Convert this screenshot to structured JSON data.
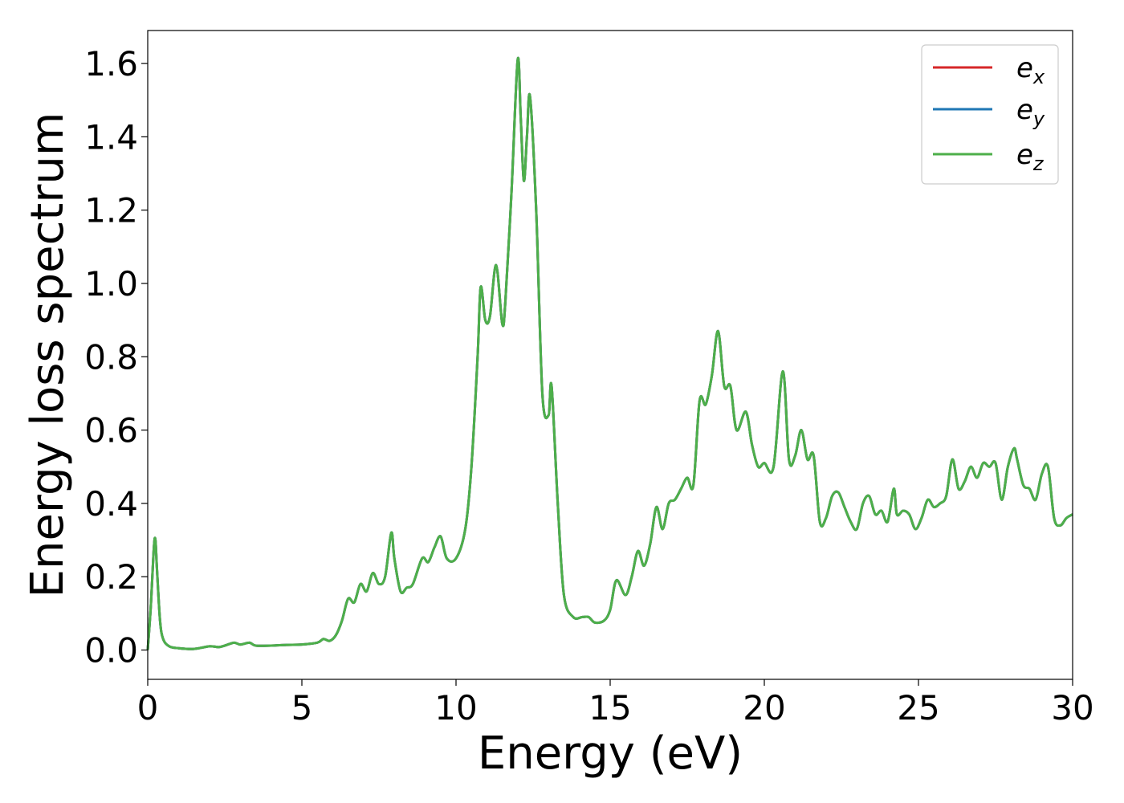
{
  "chart_data": {
    "type": "line",
    "title": "",
    "xlabel": "Energy (eV)",
    "ylabel": "Energy loss spectrum",
    "xlim": [
      0,
      30
    ],
    "ylim": [
      -0.08,
      1.69
    ],
    "xticks": [
      0,
      5,
      10,
      15,
      20,
      25,
      30
    ],
    "xtick_labels": [
      "0",
      "5",
      "10",
      "15",
      "20",
      "25",
      "30"
    ],
    "yticks": [
      0.0,
      0.2,
      0.4,
      0.6,
      0.8,
      1.0,
      1.2,
      1.4,
      1.6
    ],
    "ytick_labels": [
      "0.0",
      "0.2",
      "0.4",
      "0.6",
      "0.8",
      "1.0",
      "1.2",
      "1.4",
      "1.6"
    ],
    "grid": false,
    "legend_position": "top-right",
    "series": [
      {
        "name": "e_x",
        "label_base": "e",
        "label_sub": "x",
        "color": "#d62728",
        "shared_curve": true
      },
      {
        "name": "e_y",
        "label_base": "e",
        "label_sub": "y",
        "color": "#1f77b4",
        "shared_curve": true
      },
      {
        "name": "e_z",
        "label_base": "e",
        "label_sub": "z",
        "color": "#4daf4a",
        "shared_curve": true
      }
    ],
    "x": [
      0.0,
      0.1,
      0.2,
      0.25,
      0.3,
      0.4,
      0.5,
      0.7,
      1.0,
      1.5,
      2.0,
      2.3,
      2.5,
      2.8,
      3.0,
      3.3,
      3.5,
      4.0,
      4.5,
      5.0,
      5.5,
      5.7,
      5.9,
      6.1,
      6.3,
      6.5,
      6.7,
      6.9,
      7.1,
      7.3,
      7.5,
      7.7,
      7.9,
      8.0,
      8.2,
      8.4,
      8.6,
      8.9,
      9.1,
      9.3,
      9.5,
      9.7,
      10.0,
      10.3,
      10.5,
      10.7,
      10.8,
      10.95,
      11.1,
      11.3,
      11.5,
      11.6,
      11.8,
      12.0,
      12.1,
      12.2,
      12.3,
      12.4,
      12.6,
      12.8,
      13.0,
      13.1,
      13.3,
      13.5,
      13.8,
      14.1,
      14.3,
      14.5,
      14.8,
      15.0,
      15.2,
      15.5,
      15.7,
      15.9,
      16.1,
      16.3,
      16.5,
      16.7,
      16.9,
      17.1,
      17.3,
      17.5,
      17.7,
      17.9,
      18.1,
      18.3,
      18.5,
      18.7,
      18.9,
      19.1,
      19.4,
      19.6,
      19.8,
      20.0,
      20.3,
      20.6,
      20.8,
      21.0,
      21.2,
      21.4,
      21.6,
      21.8,
      22.0,
      22.2,
      22.4,
      22.6,
      22.8,
      23.0,
      23.2,
      23.4,
      23.6,
      23.8,
      24.0,
      24.2,
      24.3,
      24.5,
      24.7,
      24.9,
      25.1,
      25.3,
      25.5,
      25.7,
      25.9,
      26.1,
      26.3,
      26.5,
      26.7,
      26.9,
      27.1,
      27.3,
      27.5,
      27.7,
      27.9,
      28.1,
      28.2,
      28.4,
      28.6,
      28.8,
      29.0,
      29.2,
      29.4,
      29.6,
      29.8,
      30.0
    ],
    "y": [
      0.0,
      0.12,
      0.28,
      0.3,
      0.22,
      0.08,
      0.03,
      0.01,
      0.005,
      0.003,
      0.01,
      0.008,
      0.012,
      0.02,
      0.015,
      0.02,
      0.012,
      0.012,
      0.014,
      0.015,
      0.02,
      0.03,
      0.025,
      0.04,
      0.08,
      0.14,
      0.13,
      0.18,
      0.16,
      0.21,
      0.18,
      0.2,
      0.32,
      0.25,
      0.16,
      0.17,
      0.18,
      0.25,
      0.24,
      0.28,
      0.31,
      0.25,
      0.25,
      0.33,
      0.5,
      0.8,
      0.99,
      0.9,
      0.91,
      1.05,
      0.89,
      0.95,
      1.25,
      1.61,
      1.45,
      1.28,
      1.4,
      1.51,
      1.2,
      0.7,
      0.64,
      0.72,
      0.4,
      0.15,
      0.09,
      0.09,
      0.09,
      0.075,
      0.08,
      0.11,
      0.19,
      0.15,
      0.2,
      0.27,
      0.23,
      0.29,
      0.39,
      0.33,
      0.4,
      0.41,
      0.44,
      0.47,
      0.45,
      0.68,
      0.67,
      0.75,
      0.87,
      0.72,
      0.72,
      0.6,
      0.65,
      0.56,
      0.5,
      0.51,
      0.5,
      0.76,
      0.52,
      0.53,
      0.6,
      0.52,
      0.53,
      0.35,
      0.36,
      0.42,
      0.43,
      0.39,
      0.35,
      0.33,
      0.4,
      0.42,
      0.37,
      0.38,
      0.35,
      0.44,
      0.37,
      0.38,
      0.37,
      0.33,
      0.36,
      0.41,
      0.39,
      0.4,
      0.42,
      0.52,
      0.44,
      0.46,
      0.5,
      0.47,
      0.51,
      0.5,
      0.51,
      0.41,
      0.5,
      0.55,
      0.52,
      0.45,
      0.44,
      0.41,
      0.48,
      0.5,
      0.36,
      0.34,
      0.36,
      0.37
    ]
  }
}
